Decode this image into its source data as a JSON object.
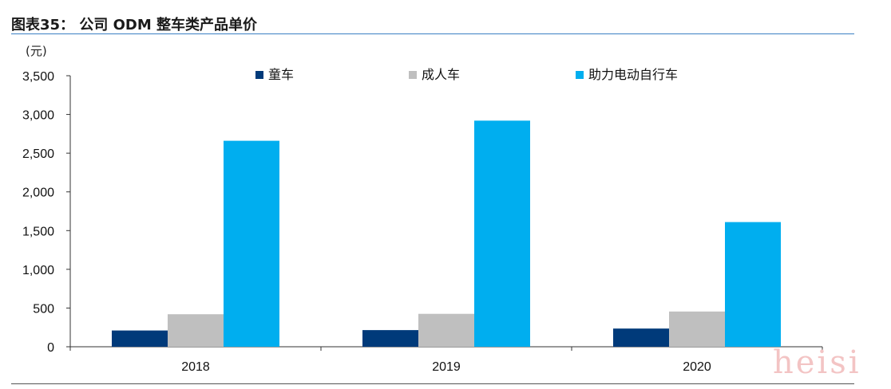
{
  "figure": {
    "title": "图表35： 公司 ODM 整车类产品单价",
    "watermark": "heisi"
  },
  "colors": {
    "rule": "#3b7fc4",
    "series": [
      "#003a7a",
      "#bfbfbf",
      "#00aeef"
    ]
  },
  "chart_data": {
    "type": "bar",
    "title": "",
    "ylabel": "(元)",
    "xlabel": "",
    "categories": [
      "2018",
      "2019",
      "2020"
    ],
    "series": [
      {
        "name": "童车",
        "values": [
          210,
          215,
          235
        ]
      },
      {
        "name": "成人车",
        "values": [
          420,
          425,
          455
        ]
      },
      {
        "name": "助力电动自行车",
        "values": [
          2660,
          2920,
          1610
        ]
      }
    ],
    "ylim": [
      0,
      3500
    ],
    "yticks": [
      0,
      500,
      1000,
      1500,
      2000,
      2500,
      3000,
      3500
    ],
    "ytick_labels": [
      "0",
      "500",
      "1,000",
      "1,500",
      "2,000",
      "2,500",
      "3,000",
      "3,500"
    ],
    "grid": false,
    "legend_position": "top"
  }
}
